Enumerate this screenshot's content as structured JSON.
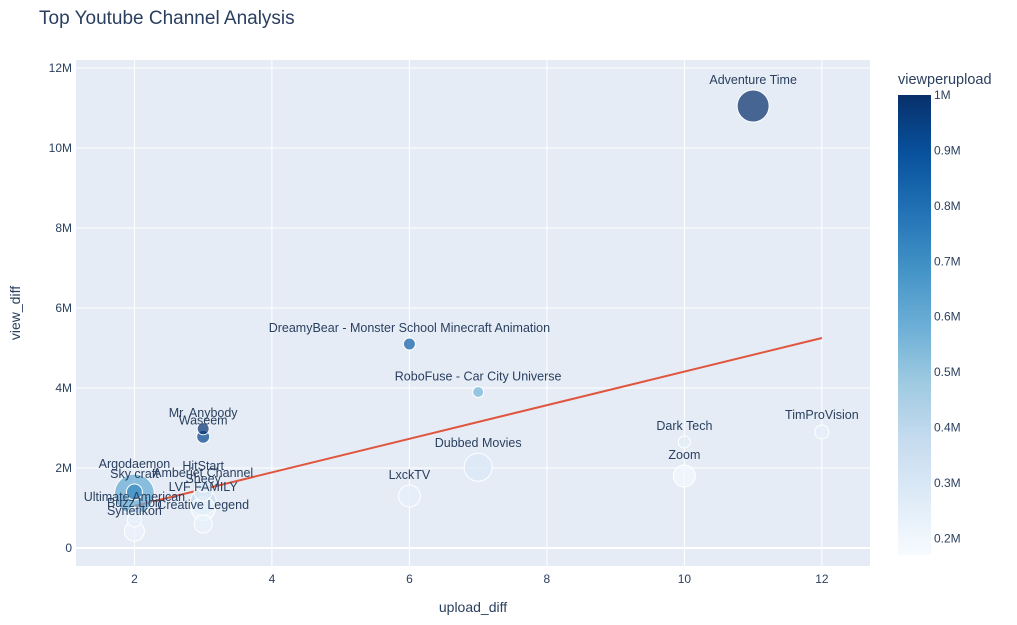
{
  "chart_data": {
    "type": "scatter",
    "title": "Top Youtube Channel Analysis",
    "xlabel": "upload_diff",
    "ylabel": "view_diff",
    "xlim": [
      1.15,
      12.7
    ],
    "ylim": [
      -450000,
      12200000
    ],
    "x_ticks": [
      2,
      4,
      6,
      8,
      10,
      12
    ],
    "y_ticks": [
      0,
      2000000,
      4000000,
      6000000,
      8000000,
      10000000,
      12000000
    ],
    "y_tick_labels": [
      "0",
      "2M",
      "4M",
      "6M",
      "8M",
      "10M",
      "12M"
    ],
    "color_scale": {
      "title": "viewperupload",
      "min": 170000,
      "max": 1000000,
      "ticks": [
        200000,
        300000,
        400000,
        500000,
        600000,
        700000,
        800000,
        900000,
        1000000
      ],
      "tick_labels": [
        "0.2M",
        "0.3M",
        "0.4M",
        "0.5M",
        "0.6M",
        "0.7M",
        "0.8M",
        "0.9M",
        "1M"
      ]
    },
    "trendline": {
      "x": [
        2,
        12
      ],
      "y": [
        1050000,
        5250000
      ],
      "color": "#e0553e"
    },
    "points": [
      {
        "name": "Adventure Time",
        "x": 11,
        "y": 11050000,
        "size": 16,
        "color_value": 1000000,
        "label_pos": "top"
      },
      {
        "name": "DreamyBear - Monster School Minecraft Animation",
        "x": 6,
        "y": 5100000,
        "size": 6,
        "color_value": 850000,
        "label_pos": "top"
      },
      {
        "name": "RoboFuse - Car City Universe",
        "x": 7,
        "y": 3900000,
        "size": 5.5,
        "color_value": 560000,
        "label_pos": "top"
      },
      {
        "name": "Mr. Anybody",
        "x": 3,
        "y": 2980000,
        "size": 6,
        "color_value": 980000,
        "label_pos": "top"
      },
      {
        "name": "Waseem",
        "x": 3,
        "y": 2780000,
        "size": 6.5,
        "color_value": 930000,
        "label_pos": "top"
      },
      {
        "name": "Dark Tech",
        "x": 10,
        "y": 2650000,
        "size": 6,
        "color_value": 260000,
        "label_pos": "top"
      },
      {
        "name": "TimProVision",
        "x": 12,
        "y": 2900000,
        "size": 7,
        "color_value": 250000,
        "label_pos": "top"
      },
      {
        "name": "Dubbed Movies",
        "x": 7,
        "y": 2020000,
        "size": 14,
        "color_value": 290000,
        "label_pos": "top"
      },
      {
        "name": "Zoom",
        "x": 10,
        "y": 1800000,
        "size": 11,
        "color_value": 190000,
        "label_pos": "top"
      },
      {
        "name": "LxckTV",
        "x": 6,
        "y": 1300000,
        "size": 11,
        "color_value": 240000,
        "label_pos": "top"
      },
      {
        "name": "HitStart",
        "x": 3,
        "y": 1600000,
        "size": 8,
        "color_value": 300000,
        "label_pos": "top"
      },
      {
        "name": "Amberjet Channel",
        "x": 3,
        "y": 1400000,
        "size": 9,
        "color_value": 280000,
        "label_pos": "top"
      },
      {
        "name": "Sky craft",
        "x": 2,
        "y": 1400000,
        "size": 8,
        "color_value": 720000,
        "label_pos": "top"
      },
      {
        "name": "Argodaemon",
        "x": 2,
        "y": 1350000,
        "size": 20,
        "color_value": 600000,
        "label_pos": "top"
      },
      {
        "name": "Sheey",
        "x": 3,
        "y": 1150000,
        "size": 13,
        "color_value": 380000,
        "label_pos": "top"
      },
      {
        "name": "LVF FAMILY",
        "x": 3,
        "y": 980000,
        "size": 12,
        "color_value": 210000,
        "label_pos": "top"
      },
      {
        "name": "Creative Legend",
        "x": 3,
        "y": 600000,
        "size": 9,
        "color_value": 230000,
        "label_pos": "top"
      },
      {
        "name": "Ultimate American",
        "x": 2,
        "y": 850000,
        "size": 7,
        "color_value": 280000,
        "label_pos": "top"
      },
      {
        "name": "Buzz Lion",
        "x": 2,
        "y": 700000,
        "size": 7,
        "color_value": 250000,
        "label_pos": "top"
      },
      {
        "name": "Synetikon",
        "x": 2,
        "y": 420000,
        "size": 10,
        "color_value": 220000,
        "label_pos": "top"
      }
    ]
  }
}
